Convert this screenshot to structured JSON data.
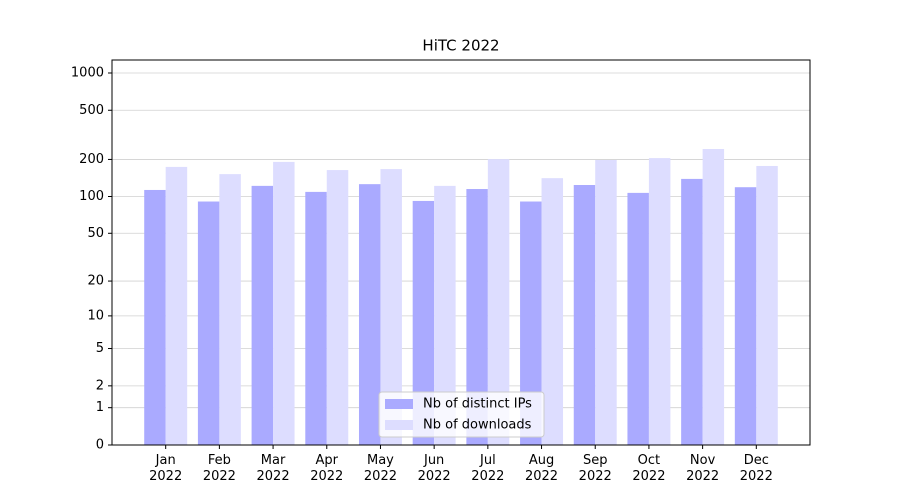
{
  "chart_data": {
    "type": "bar",
    "title": "HiTC 2022",
    "categories": [
      "Jan\n2022",
      "Feb\n2022",
      "Mar\n2022",
      "Apr\n2022",
      "May\n2022",
      "Jun\n2022",
      "Jul\n2022",
      "Aug\n2022",
      "Sep\n2022",
      "Oct\n2022",
      "Nov\n2022",
      "Dec\n2022"
    ],
    "series": [
      {
        "name": "Nb of distinct IPs",
        "color": "#aaaaff",
        "values": [
          113,
          91,
          122,
          109,
          126,
          92,
          115,
          91,
          124,
          107,
          139,
          119
        ]
      },
      {
        "name": "Nb of downloads",
        "color": "#ddddff",
        "values": [
          174,
          152,
          191,
          164,
          167,
          122,
          201,
          141,
          198,
          205,
          243,
          177
        ]
      }
    ],
    "yscale": "log1p",
    "ylim": [
      0,
      1273
    ],
    "yticks": [
      0,
      1,
      2,
      5,
      10,
      20,
      50,
      100,
      200,
      500,
      1000
    ],
    "grid": true,
    "legend": "lower center"
  }
}
